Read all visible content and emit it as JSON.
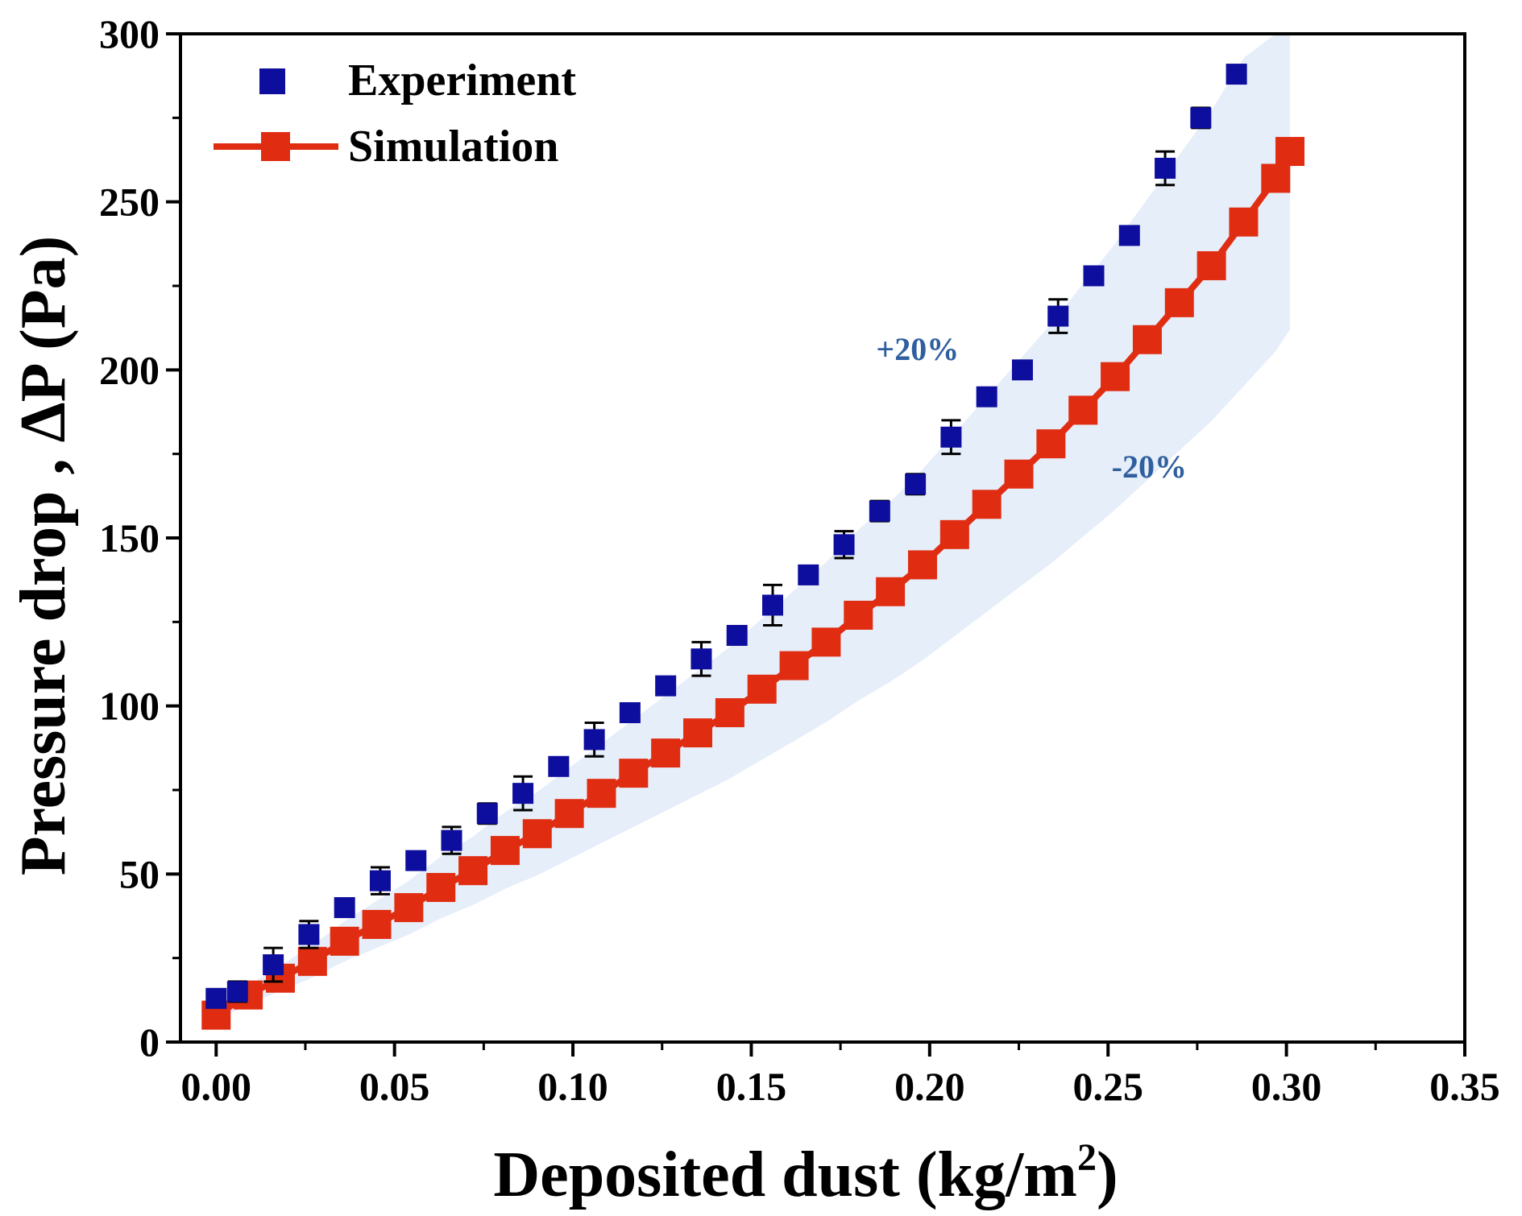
{
  "chart_data": {
    "type": "scatter",
    "title": "",
    "xlabel": "Deposited dust (kg/m",
    "xlabel_sup": "2",
    "xlabel_close": ")",
    "ylabel": "Pressure drop , ΔP (Pa)",
    "xlim": [
      -0.01,
      0.35
    ],
    "ylim": [
      0,
      300
    ],
    "x_ticks": [
      0.0,
      0.05,
      0.1,
      0.15,
      0.2,
      0.25,
      0.3,
      0.35
    ],
    "x_tick_labels": [
      "0.00",
      "0.05",
      "0.10",
      "0.15",
      "0.20",
      "0.25",
      "0.30",
      "0.35"
    ],
    "y_ticks": [
      0,
      50,
      100,
      150,
      200,
      250,
      300
    ],
    "y_tick_labels": [
      "0",
      "50",
      "100",
      "150",
      "200",
      "250",
      "300"
    ],
    "grid": false,
    "legend_position": "top-left",
    "band": {
      "color": "#e6eef9",
      "upper_label": "+20%",
      "lower_label": "-20%",
      "label_color": "#2f5f9f",
      "upper_label_at": [
        0.185,
        203
      ],
      "lower_label_at": [
        0.251,
        168
      ]
    },
    "series": [
      {
        "name": "Experiment",
        "color": "#0d0d9e",
        "marker": "square",
        "line": false,
        "x": [
          0.0,
          0.006,
          0.016,
          0.026,
          0.036,
          0.046,
          0.056,
          0.066,
          0.076,
          0.086,
          0.096,
          0.106,
          0.116,
          0.126,
          0.136,
          0.146,
          0.156,
          0.166,
          0.176,
          0.186,
          0.196,
          0.206,
          0.216,
          0.226,
          0.236,
          0.246,
          0.256,
          0.266,
          0.276,
          0.286
        ],
        "y": [
          13,
          15,
          23,
          32,
          40,
          48,
          54,
          60,
          68,
          74,
          82,
          90,
          98,
          106,
          114,
          121,
          130,
          139,
          148,
          158,
          166,
          180,
          192,
          200,
          216,
          228,
          240,
          260,
          275,
          288
        ],
        "err": [
          2,
          3,
          5,
          4,
          2,
          4,
          2,
          4,
          3,
          5,
          2,
          5,
          2,
          2,
          5,
          2,
          6,
          2,
          4,
          3,
          3,
          5,
          2,
          2,
          5,
          2,
          2,
          5,
          3,
          2
        ]
      },
      {
        "name": "Simulation",
        "color": "#e02d12",
        "marker": "square",
        "line": true,
        "x": [
          0.0,
          0.009,
          0.018,
          0.027,
          0.036,
          0.045,
          0.054,
          0.063,
          0.072,
          0.081,
          0.09,
          0.099,
          0.108,
          0.117,
          0.126,
          0.135,
          0.144,
          0.153,
          0.162,
          0.171,
          0.18,
          0.189,
          0.198,
          0.207,
          0.216,
          0.225,
          0.234,
          0.243,
          0.252,
          0.261,
          0.27,
          0.279,
          0.288,
          0.297,
          0.301
        ],
        "y": [
          8,
          14,
          19,
          24,
          30,
          35,
          40,
          46,
          51,
          57,
          62,
          68,
          74,
          80,
          86,
          92,
          98,
          105,
          112,
          119,
          127,
          134,
          142,
          151,
          160,
          169,
          178,
          188,
          198,
          209,
          220,
          231,
          244,
          257,
          265
        ]
      }
    ]
  }
}
